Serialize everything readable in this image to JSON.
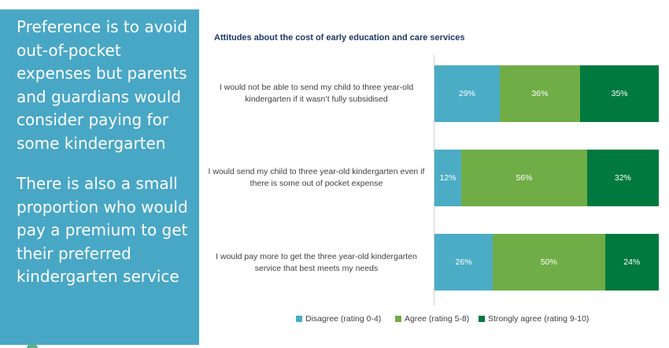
{
  "left_panel": {
    "paragraph1": "Preference is to avoid out-of-pocket expenses but parents and guardians would consider paying for some kindergarten",
    "paragraph2": "There is also a small proportion who would pay a premium to get their preferred kindergarten service"
  },
  "chart_data": {
    "type": "bar",
    "orientation": "horizontal",
    "stacked": true,
    "percent_stacked": true,
    "title": "Attitudes about the cost of early education and care services",
    "categories": [
      "I would not be able to send my child to three year-old kindergarten if it wasn’t fully subsidised",
      "I would send my child to three year-old kindergarten even if there is some out of pocket expense",
      "I would pay more to get the three year-old kindergarten service that best meets my needs"
    ],
    "series": [
      {
        "name": "Disagree (rating 0-4)",
        "color": "#4bacc6",
        "values": [
          29,
          12,
          26
        ],
        "labels": [
          "29%",
          "12%",
          "26%"
        ]
      },
      {
        "name": "Agree (rating 5-8)",
        "color": "#70ad47",
        "values": [
          36,
          56,
          50
        ],
        "labels": [
          "36%",
          "56%",
          "50%"
        ]
      },
      {
        "name": "Strongly agree (rating 9-10)",
        "color": "#00793f",
        "values": [
          35,
          32,
          24
        ],
        "labels": [
          "35%",
          "32%",
          "24%"
        ]
      }
    ],
    "legend_position": "bottom",
    "xlim": [
      0,
      100
    ],
    "grid": false
  }
}
